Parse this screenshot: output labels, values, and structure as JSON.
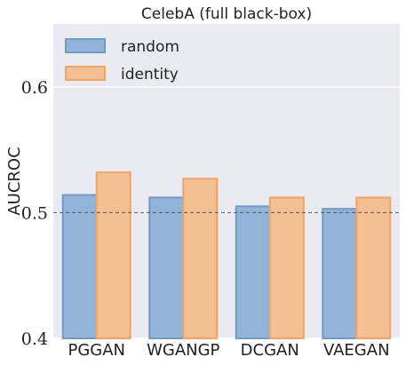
{
  "chart_data": {
    "type": "bar",
    "title": "CelebA (full black-box)",
    "xlabel": "",
    "ylabel": "AUCROC",
    "categories": [
      "PGGAN",
      "WGANGP",
      "DCGAN",
      "VAEGAN"
    ],
    "series": [
      {
        "name": "random",
        "values": [
          0.514,
          0.512,
          0.505,
          0.503
        ],
        "color": "#92b4d8",
        "edge": "#6e9cc9"
      },
      {
        "name": "identity",
        "values": [
          0.532,
          0.527,
          0.512,
          0.512
        ],
        "color": "#f5bf94",
        "edge": "#f2a463"
      }
    ],
    "ylim": [
      0.4,
      0.65
    ],
    "yticks": [
      "0.4",
      "0.5",
      "0.6"
    ],
    "reference_line": 0.5,
    "grid": true,
    "legend_position": "top-left",
    "background": "#eaeaf2"
  }
}
